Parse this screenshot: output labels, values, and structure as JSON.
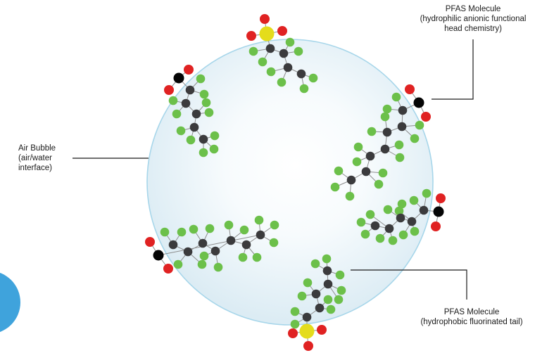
{
  "labels": {
    "air_bubble": [
      "Air Bubble",
      "(air/water",
      "interface)"
    ],
    "head": [
      "PFAS Molecule",
      "(hydrophilic anionic functional",
      "head chemistry)"
    ],
    "tail": [
      "PFAS Molecule",
      "(hydrophobic fluorinated tail)"
    ]
  },
  "colors": {
    "oxygen": "#e02222",
    "carbon": "#3b3b3d",
    "fluorine": "#6cc04a",
    "sulfur": "#e4dc1c",
    "head_carbon": "#050505",
    "bubble_edge": "#9fd3e8",
    "bubble_fill": "#e6f3f8",
    "accent_blob": "#3fa3dc"
  }
}
